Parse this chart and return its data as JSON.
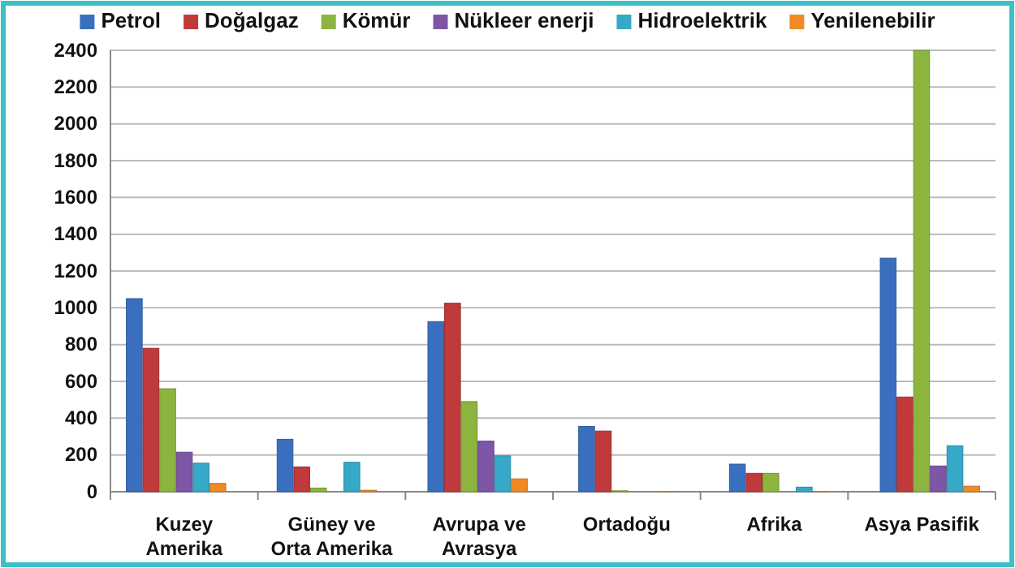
{
  "chart_data": {
    "type": "bar",
    "categories": [
      "Kuzey Amerika",
      "Güney ve Orta Amerika",
      "Avrupa ve Avrasya",
      "Ortadoğu",
      "Afrika",
      "Asya Pasifik"
    ],
    "series": [
      {
        "name": "Petrol",
        "color": "#3a6fc0",
        "values": [
          1050,
          285,
          925,
          355,
          150,
          1270
        ]
      },
      {
        "name": "Doğalgaz",
        "color": "#c0393b",
        "values": [
          780,
          135,
          1025,
          330,
          100,
          515
        ]
      },
      {
        "name": "Kömür",
        "color": "#8db43e",
        "values": [
          560,
          20,
          490,
          5,
          100,
          2400
        ]
      },
      {
        "name": "Nükleer enerji",
        "color": "#7d56a6",
        "values": [
          215,
          0,
          275,
          0,
          0,
          140
        ]
      },
      {
        "name": "Hidroelektrik",
        "color": "#36a8c8",
        "values": [
          155,
          160,
          195,
          0,
          25,
          250
        ]
      },
      {
        "name": "Yenilenebilir",
        "color": "#f08a24",
        "values": [
          45,
          8,
          70,
          2,
          2,
          30
        ]
      }
    ],
    "ylim": [
      0,
      2400
    ],
    "yticks": [
      0,
      200,
      400,
      600,
      800,
      1000,
      1200,
      1400,
      1600,
      1800,
      2000,
      2200,
      2400
    ],
    "grid": "y",
    "legend": "top"
  }
}
